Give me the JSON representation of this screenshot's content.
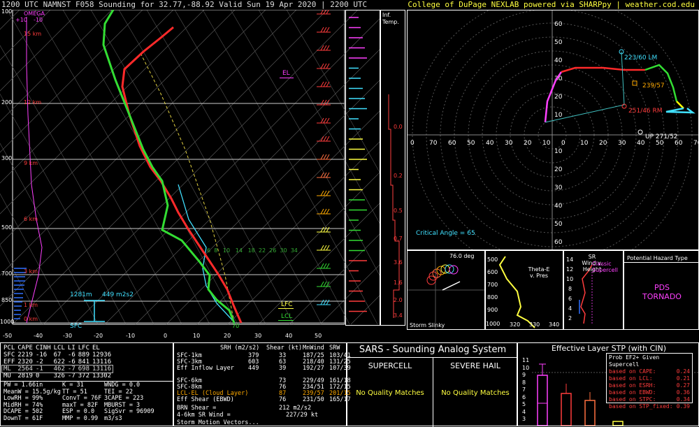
{
  "header": {
    "title": "1200 UTC NAMNST F058 Sounding for 32.77,-88.92 Valid  Sun 19 Apr 2020 | 2200 UTC",
    "credit": "College of DuPage NEXLAB powered via SHARPpy | weather.cod.edu"
  },
  "skewt": {
    "omega_label": "OMEGA",
    "omega_ticks": [
      "+10",
      "-10"
    ],
    "pressure_ticks": [
      "100",
      "200",
      "300",
      "500",
      "700",
      "850",
      "1000"
    ],
    "height_labels": [
      "15 km",
      "12 km",
      "9 km",
      "6 km",
      "3 km",
      "1 km",
      "0 km"
    ],
    "temp_ticks": [
      "-50",
      "-40",
      "-30",
      "-20",
      "-10",
      "0",
      "10",
      "20",
      "30",
      "40",
      "50"
    ],
    "el_label": "EL",
    "lfc_label": "LFC",
    "lcl_label": "LCL",
    "sfc_label": "SFC",
    "eff_inflow_bottom": "1281m",
    "eff_inflow_srh": "449 m2s2",
    "sfc_temp_label": "70",
    "mixing_ratio_labels": [
      "6",
      "8",
      "10",
      "14",
      "18",
      "22",
      "26",
      "30",
      "34"
    ]
  },
  "inferred_temp": {
    "label_1": "Inf.",
    "label_2": "Temp.",
    "ticks": [
      "0.0",
      "0.2",
      "0.5",
      "0.7",
      "3.6",
      "1.6",
      "2.0",
      "3.4"
    ]
  },
  "hodograph": {
    "rings": [
      "70",
      "60",
      "50",
      "40",
      "30",
      "20",
      "10"
    ],
    "y_ticks": [
      "60",
      "50",
      "40",
      "30",
      "20",
      "10",
      "10",
      "20",
      "30",
      "40",
      "50",
      "60"
    ],
    "x_ticks": [
      "0",
      "70",
      "60",
      "50",
      "40",
      "30",
      "20",
      "10",
      "0",
      "10",
      "20",
      "30",
      "40",
      "50",
      "60",
      "70"
    ],
    "labels": {
      "lm": "223/60 LM",
      "mean": "239/57",
      "rm": "251/46 RM",
      "up": "UP 271/52",
      "critical_angle": "Critical Angle = 65"
    }
  },
  "storm_slinky": {
    "angle": "76.0 deg",
    "label": "Storm Slinky"
  },
  "theta_e": {
    "label": "Theta-E v. Pres",
    "y_ticks": [
      "500",
      "600",
      "700",
      "800",
      "900",
      "1000"
    ],
    "x_ticks": [
      "320",
      "330",
      "340"
    ]
  },
  "sr_wind": {
    "label": "SR Wind v. Height",
    "y_ticks": [
      "14",
      "12",
      "10",
      "8",
      "6",
      "4",
      "2"
    ],
    "classic_label": "Classic Supercell"
  },
  "hazard": {
    "title": "Potential Hazard Type",
    "type": "PDS\nTORNADO"
  },
  "parcels": {
    "headers": [
      "PCL",
      "CAPE",
      "CINH",
      "LCL",
      "LI",
      "LFC",
      "EL"
    ],
    "rows": [
      [
        "SFC",
        "2219",
        "-16",
        "67",
        "-6",
        "889",
        "12936"
      ],
      [
        "EFF",
        "2320",
        "-2",
        "622",
        "-6",
        "841",
        "13116"
      ],
      [
        "ML",
        "2564",
        "-1",
        "462",
        "-7",
        "698",
        "13116"
      ],
      [
        "MU",
        "2819",
        "0",
        "326",
        "-7",
        "372",
        "13302"
      ]
    ],
    "selected_row": 2
  },
  "indices": {
    "col1": [
      "PW = 1.66in",
      "MeanW = 15.5g/kg",
      "LowRH = 99%",
      "MidRH = 74%",
      "DCAPE = 502",
      "DownT = 61F"
    ],
    "col2": [
      "K = 31",
      "TT = 51",
      "ConvT = 76F",
      "maxT = 82F",
      "ESP = 0.0",
      "MMP = 0.99"
    ],
    "col3": [
      "WNDG = 0.0",
      "TEI = 22",
      "3CAPE = 223",
      "MBURST = 3",
      "",
      "SigSvr = 96909 m3/s3"
    ]
  },
  "kinematics": {
    "headers": [
      "SRH (m2/s2)",
      "Shear (kt)",
      "MnWind",
      "SRW"
    ],
    "rows": [
      [
        "SFC-1km",
        "379",
        "33",
        "187/25",
        "103/41"
      ],
      [
        "SFC-3km",
        "603",
        "63",
        "218/40",
        "131/25"
      ],
      [
        "Eff Inflow Layer",
        "449",
        "39",
        "192/27",
        "107/39"
      ],
      [
        "",
        "",
        "",
        "",
        ""
      ],
      [
        "SFC-6km",
        "73",
        "229/49",
        "161/18",
        ""
      ],
      [
        "SFC-8km",
        "76",
        "234/51",
        "172/15",
        ""
      ],
      [
        "LCL-EL (Cloud Layer)",
        "87",
        "239/57",
        "201/15",
        ""
      ],
      [
        "Eff Shear (EBWD)",
        "76",
        "231/50",
        "165/17",
        ""
      ]
    ],
    "brn_label": "BRN Shear =",
    "brn_value": "212 m2/s2",
    "sr46_label": "4-6km SR Wind =",
    "sr46_value": "227/29 kt",
    "storm_motion": "Storm Motion Vectors..."
  },
  "sars": {
    "title": "SARS - Sounding Analog System",
    "supercell_label": "SUPERCELL",
    "hail_label": "SEVERE HAIL",
    "supercell_match": "No Quality Matches",
    "hail_match": "No Quality Matches"
  },
  "stp": {
    "title": "Effective Layer STP (with CIN)",
    "y_ticks": [
      "11",
      "10",
      "9",
      "8",
      "7",
      "6",
      "5",
      "4",
      "3"
    ],
    "prob_title": "Prob EF2+ Given Supercell",
    "prob_rows": [
      [
        "based on CAPE:",
        "0.24"
      ],
      [
        "based on LCL:",
        "0.21"
      ],
      [
        "based on ESRH:",
        "0.27"
      ],
      [
        "based on EBWD:",
        "0.36"
      ],
      [
        "based on STPC:",
        "0.34"
      ],
      [
        "based on STP_fixed:",
        "0.39"
      ]
    ]
  },
  "colors": {
    "temperature": "#ff2a2a",
    "dewpoint": "#33dd33",
    "wetbulb": "#40e0ff",
    "parcel": "#ffff66",
    "height": "#ff4040",
    "hodo_0_3": "#ff2a2a",
    "hodo_3_6": "#33dd33",
    "hodo_6_9": "#ffff00",
    "hodo_9_12": "#40e0ff",
    "hodo_low": "#ff40ff"
  }
}
